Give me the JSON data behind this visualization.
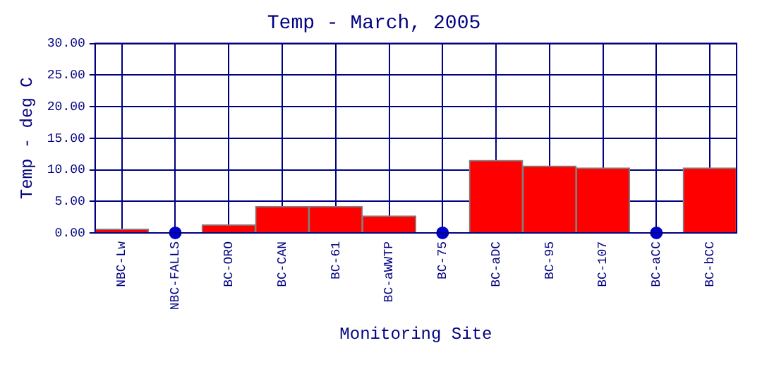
{
  "chart_data": {
    "type": "bar",
    "title": "Temp - March, 2005",
    "xlabel": "Monitoring Site",
    "ylabel": "Temp - deg C",
    "categories": [
      "NBC-Lw",
      "NBC-FALLS",
      "BC-ORO",
      "BC-CAN",
      "BC-61",
      "BC-aWWTP",
      "BC-75",
      "BC-aDC",
      "BC-95",
      "BC-107",
      "BC-aCC",
      "BC-bCC"
    ],
    "series": [
      {
        "type": "bar",
        "color": "#ff0000",
        "values": [
          0.6,
          null,
          1.3,
          4.2,
          4.2,
          2.7,
          null,
          11.5,
          10.6,
          10.3,
          null,
          10.3
        ]
      },
      {
        "type": "scatter",
        "color": "#0000cc",
        "x": [
          "NBC-FALLS",
          "BC-75",
          "BC-aCC"
        ],
        "values": [
          0,
          0,
          0
        ],
        "marker": "circle"
      }
    ],
    "ylim": [
      0,
      30
    ],
    "yticks": [
      {
        "value": 0,
        "label": "0.00"
      },
      {
        "value": 5,
        "label": "5.00"
      },
      {
        "value": 10,
        "label": "10.00"
      },
      {
        "value": 15,
        "label": "15.00"
      },
      {
        "value": 20,
        "label": "20.00"
      },
      {
        "value": 25,
        "label": "25.00"
      },
      {
        "value": 30,
        "label": "30.00"
      }
    ],
    "grid": true,
    "legend": false
  }
}
